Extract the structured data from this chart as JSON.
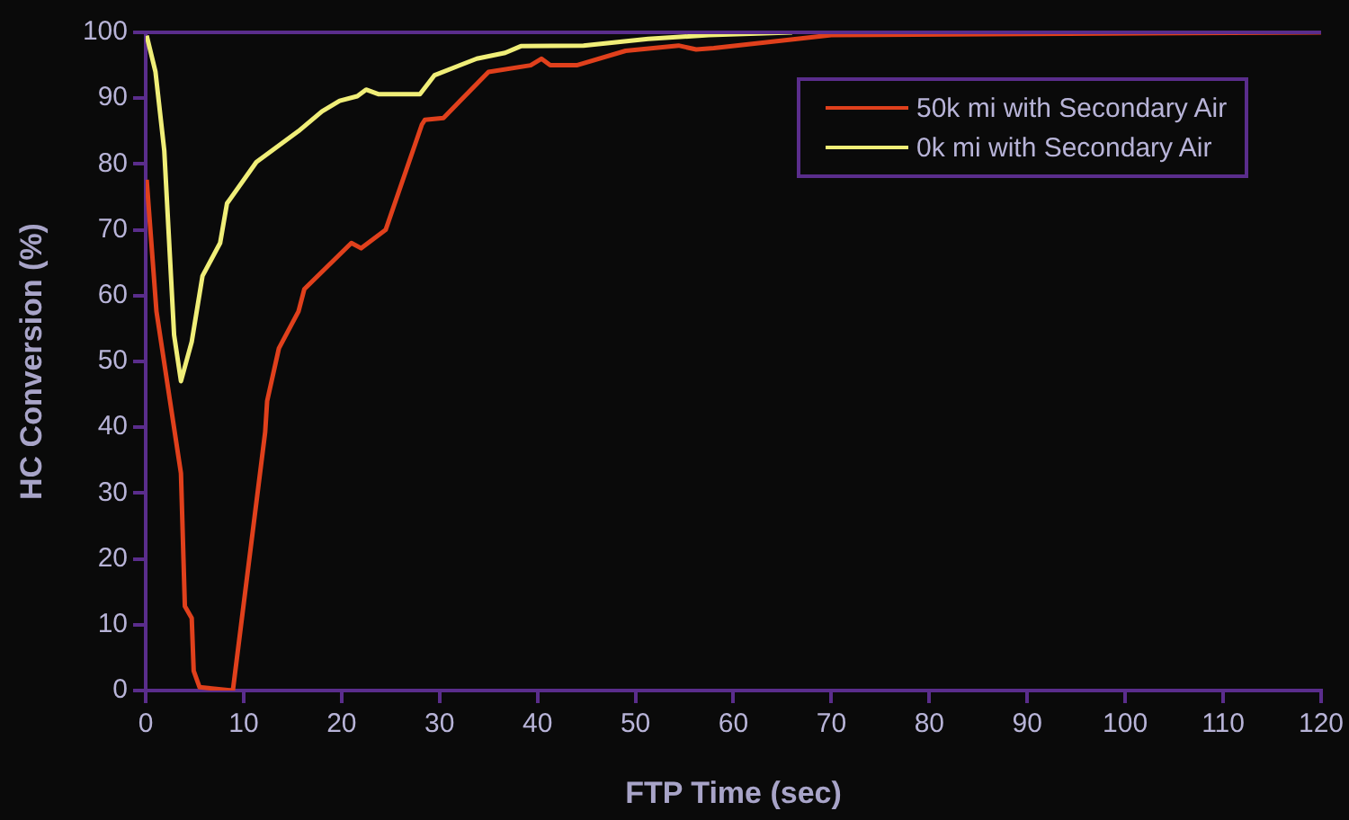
{
  "chart_data": {
    "type": "line",
    "xlabel": "FTP Time (sec)",
    "ylabel": "HC Conversion (%)",
    "xlim": [
      0,
      120
    ],
    "xticks": [
      0,
      10,
      20,
      30,
      40,
      50,
      60,
      70,
      80,
      90,
      100,
      110,
      120
    ],
    "ylim": [
      0,
      100
    ],
    "yticks": [
      0,
      10,
      20,
      30,
      40,
      50,
      60,
      70,
      80,
      90,
      100
    ],
    "grid": false,
    "legend": "top right",
    "marker": "none",
    "line_style": "solid",
    "series": [
      {
        "name": "50k mi with Secondary Air",
        "color": "#e0401c",
        "x": [
          0.1,
          1.1,
          3.6,
          4.0,
          4.7,
          4.9,
          5.5,
          8.9,
          12.2,
          12.4,
          13.6,
          15.6,
          16.2,
          21,
          22,
          24.5,
          28.2,
          28.5,
          30.4,
          35,
          39.3,
          40.4,
          41.3,
          44,
          49,
          54.4,
          56.2,
          58,
          66.5,
          70,
          120
        ],
        "values": [
          77.6,
          57.6,
          33,
          12.8,
          11,
          3,
          0.5,
          0,
          39.3,
          44,
          52,
          57.6,
          61,
          68,
          67.2,
          70,
          86,
          86.7,
          87,
          94,
          95,
          96,
          95,
          95,
          97.2,
          98,
          97.4,
          97.6,
          99,
          99.6,
          100
        ]
      },
      {
        "name": "0k mi with Secondary Air",
        "color": "#f0ee78",
        "x": [
          0.1,
          1.0,
          1.9,
          2.9,
          3.6,
          4.7,
          5.8,
          7.6,
          8.3,
          11.3,
          15.6,
          18,
          19.8,
          21.6,
          22.5,
          23.8,
          28,
          29.5,
          33.8,
          36.7,
          38.3,
          44.7,
          51.3,
          57.5,
          66
        ],
        "values": [
          99.5,
          94,
          82,
          54,
          47,
          53,
          63,
          68,
          74,
          80.3,
          85,
          88,
          89.6,
          90.3,
          91.3,
          90.6,
          90.6,
          93.5,
          96,
          96.9,
          97.9,
          98,
          99,
          99.6,
          100
        ]
      }
    ]
  }
}
